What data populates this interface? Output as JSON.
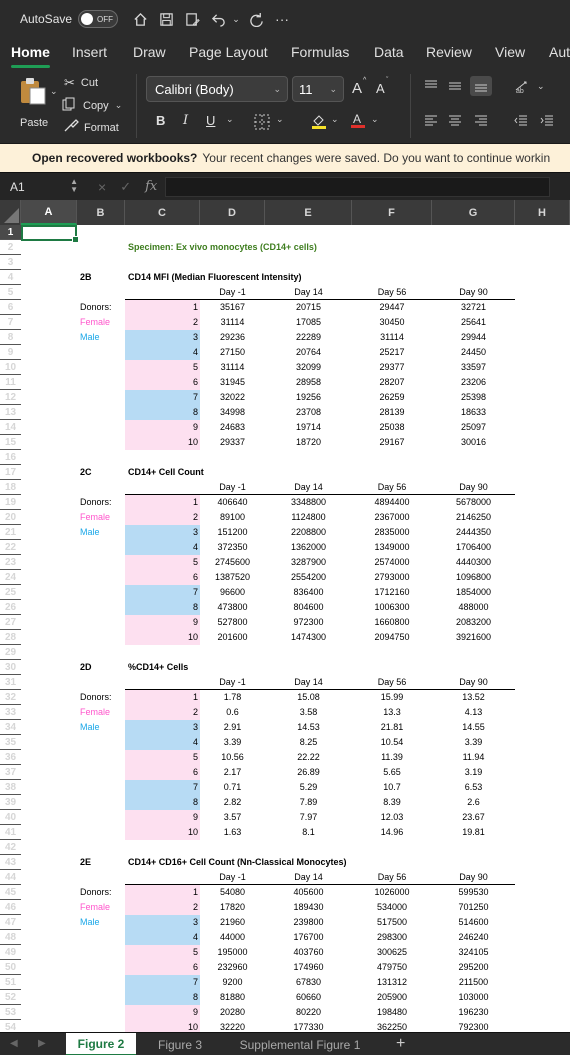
{
  "titlebar": {
    "autosave_label": "AutoSave",
    "toggle_state": "OFF",
    "more": "···"
  },
  "tabs": [
    "Home",
    "Insert",
    "Draw",
    "Page Layout",
    "Formulas",
    "Data",
    "Review",
    "View",
    "Aut"
  ],
  "ribbon": {
    "paste": "Paste",
    "cut": "Cut",
    "copy": "Copy",
    "format": "Format",
    "font_name": "Calibri (Body)",
    "font_size": "11",
    "bold": "B",
    "italic": "I",
    "underline": "U",
    "grow": "A",
    "shrink": "A"
  },
  "infobar": {
    "bold_text": "Open recovered workbooks?",
    "rest": "Your recent changes were saved. Do you want to continue workin"
  },
  "formulabar": {
    "cell_ref": "A1",
    "cancel": "×",
    "enter": "✓",
    "fx": "fx"
  },
  "columns": [
    "A",
    "B",
    "C",
    "D",
    "E",
    "F",
    "G",
    "H"
  ],
  "sheet": {
    "row2": {
      "specimen": "Specimen: Ex vivo monocytes (CD14+ cells)"
    },
    "sections": [
      {
        "tag": "2B",
        "title": "CD14 MFI (Median Fluorescent Intensity)",
        "headers": [
          "Day -1",
          "Day 14",
          "Day 56",
          "Day 90"
        ],
        "donors_label": "Donors:",
        "female_label": "Female",
        "male_label": "Male",
        "rows": [
          [
            "1",
            "35167",
            "20715",
            "29447",
            "32721"
          ],
          [
            "2",
            "31114",
            "17085",
            "30450",
            "25641"
          ],
          [
            "3",
            "29236",
            "22289",
            "31114",
            "29944"
          ],
          [
            "4",
            "27150",
            "20764",
            "25217",
            "24450"
          ],
          [
            "5",
            "31114",
            "32099",
            "29377",
            "33597"
          ],
          [
            "6",
            "31945",
            "28958",
            "28207",
            "23206"
          ],
          [
            "7",
            "32022",
            "19256",
            "26259",
            "25398"
          ],
          [
            "8",
            "34998",
            "23708",
            "28139",
            "18633"
          ],
          [
            "9",
            "24683",
            "19714",
            "25038",
            "25097"
          ],
          [
            "10",
            "29337",
            "18720",
            "29167",
            "30016"
          ]
        ]
      },
      {
        "tag": "2C",
        "title": "CD14+ Cell Count",
        "headers": [
          "Day -1",
          "Day 14",
          "Day 56",
          "Day 90"
        ],
        "donors_label": "Donors:",
        "female_label": "Female",
        "male_label": "Male",
        "rows": [
          [
            "1",
            "406640",
            "3348800",
            "4894400",
            "5678000"
          ],
          [
            "2",
            "89100",
            "1124800",
            "2367000",
            "2146250"
          ],
          [
            "3",
            "151200",
            "2208800",
            "2835000",
            "2444350"
          ],
          [
            "4",
            "372350",
            "1362000",
            "1349000",
            "1706400"
          ],
          [
            "5",
            "2745600",
            "3287900",
            "2574000",
            "4440300"
          ],
          [
            "6",
            "1387520",
            "2554200",
            "2793000",
            "1096800"
          ],
          [
            "7",
            "96600",
            "836400",
            "1712160",
            "1854000"
          ],
          [
            "8",
            "473800",
            "804600",
            "1006300",
            "488000"
          ],
          [
            "9",
            "527800",
            "972300",
            "1660800",
            "2083200"
          ],
          [
            "10",
            "201600",
            "1474300",
            "2094750",
            "3921600"
          ]
        ]
      },
      {
        "tag": "2D",
        "title": "%CD14+ Cells",
        "headers": [
          "Day -1",
          "Day 14",
          "Day 56",
          "Day 90"
        ],
        "donors_label": "Donors:",
        "female_label": "Female",
        "male_label": "Male",
        "rows": [
          [
            "1",
            "1.78",
            "15.08",
            "15.99",
            "13.52"
          ],
          [
            "2",
            "0.6",
            "3.58",
            "13.3",
            "4.13"
          ],
          [
            "3",
            "2.91",
            "14.53",
            "21.81",
            "14.55"
          ],
          [
            "4",
            "3.39",
            "8.25",
            "10.54",
            "3.39"
          ],
          [
            "5",
            "10.56",
            "22.22",
            "11.39",
            "11.94"
          ],
          [
            "6",
            "2.17",
            "26.89",
            "5.65",
            "3.19"
          ],
          [
            "7",
            "0.71",
            "5.29",
            "10.7",
            "6.53"
          ],
          [
            "8",
            "2.82",
            "7.89",
            "8.39",
            "2.6"
          ],
          [
            "9",
            "3.57",
            "7.97",
            "12.03",
            "23.67"
          ],
          [
            "10",
            "1.63",
            "8.1",
            "14.96",
            "19.81"
          ]
        ]
      },
      {
        "tag": "2E",
        "title": "CD14+ CD16+ Cell Count (Nn-Classical Monocytes)",
        "headers": [
          "Day -1",
          "Day 14",
          "Day 56",
          "Day 90"
        ],
        "donors_label": "Donors:",
        "female_label": "Female",
        "male_label": "Male",
        "rows": [
          [
            "1",
            "54080",
            "405600",
            "1026000",
            "599530"
          ],
          [
            "2",
            "17820",
            "189430",
            "534000",
            "701250"
          ],
          [
            "3",
            "21960",
            "239800",
            "517500",
            "514600"
          ],
          [
            "4",
            "44000",
            "176700",
            "298300",
            "246240"
          ],
          [
            "5",
            "195000",
            "403760",
            "300625",
            "324105"
          ],
          [
            "6",
            "232960",
            "174960",
            "479750",
            "295200"
          ],
          [
            "7",
            "9200",
            "67830",
            "131312",
            "211500"
          ],
          [
            "8",
            "81880",
            "60660",
            "205900",
            "103000"
          ],
          [
            "9",
            "20280",
            "80220",
            "198480",
            "196230"
          ],
          [
            "10",
            "32220",
            "177330",
            "362250",
            "792300"
          ]
        ]
      }
    ]
  },
  "sheettabs": {
    "tabs": [
      "Figure 2",
      "Figure 3",
      "Supplemental Figure 1"
    ],
    "add": "+"
  }
}
